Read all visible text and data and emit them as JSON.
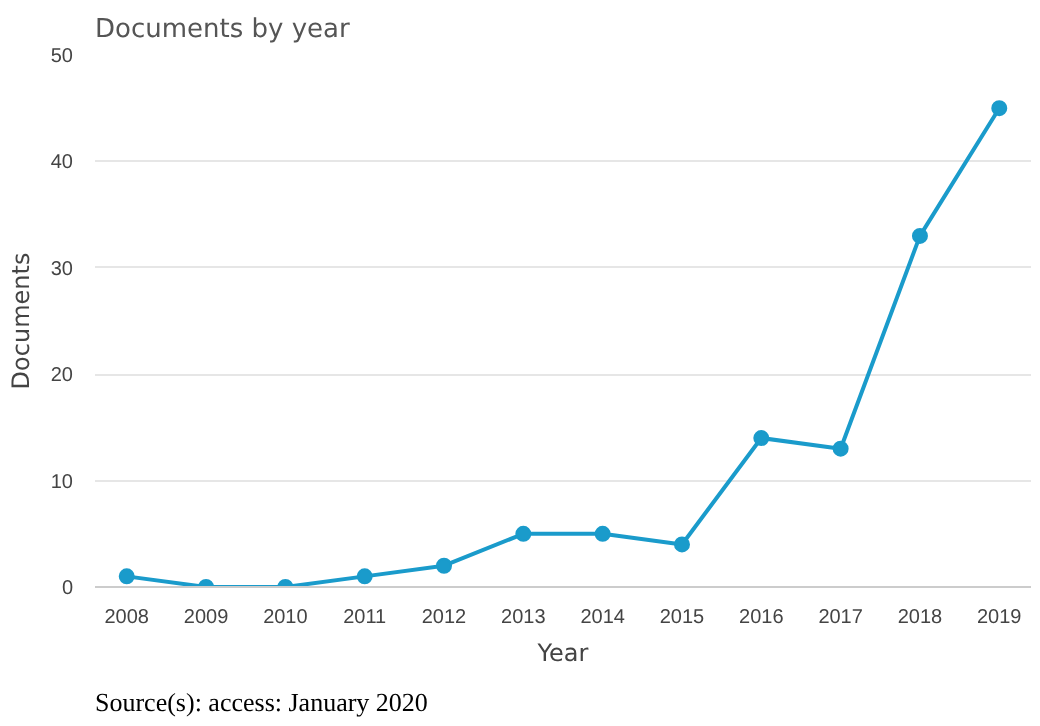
{
  "chart_data": {
    "type": "line",
    "title": "Documents by year",
    "xlabel": "Year",
    "ylabel": "Documents",
    "x": [
      2008,
      2009,
      2010,
      2011,
      2012,
      2013,
      2014,
      2015,
      2016,
      2017,
      2018,
      2019
    ],
    "series": [
      {
        "color": "#1a9bcb",
        "values": [
          1,
          0,
          0,
          1,
          2,
          5,
          5,
          4,
          14,
          13,
          33,
          45
        ]
      }
    ],
    "xlim": [
      2007.6,
      2019.4
    ],
    "xticks": [
      2008,
      2009,
      2010,
      2011,
      2012,
      2013,
      2014,
      2015,
      2016,
      2017,
      2018,
      2019
    ],
    "ylim": [
      0,
      50
    ],
    "yticks": [
      0,
      10,
      20,
      30,
      40,
      50
    ],
    "grid": "y",
    "marker": "circle",
    "line_style": "solid",
    "annotations": [
      "Source(s): access: January 2020"
    ]
  }
}
